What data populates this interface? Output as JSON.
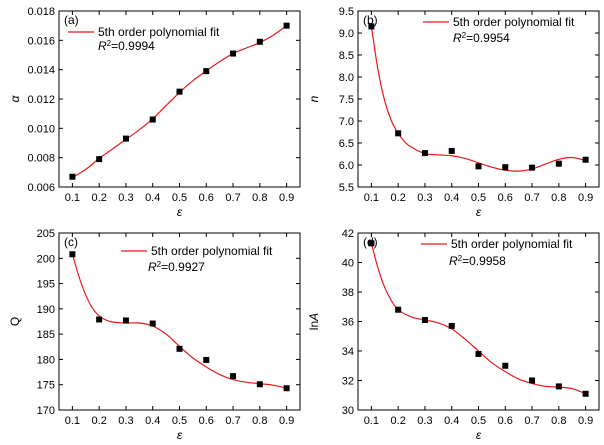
{
  "chart_data": [
    {
      "type": "scatter",
      "panel": "(a)",
      "xlabel": "ε",
      "ylabel": "α",
      "ylabel_italic": true,
      "xlim": [
        0.05,
        0.95
      ],
      "ylim": [
        0.006,
        0.018
      ],
      "xticks": [
        0.1,
        0.2,
        0.3,
        0.4,
        0.5,
        0.6,
        0.7,
        0.8,
        0.9
      ],
      "xtick_labels": [
        "0.1",
        "0.2",
        "0.3",
        "0.4",
        "0.5",
        "0.6",
        "0.7",
        "0.8",
        "0.9"
      ],
      "yticks": [
        0.006,
        0.008,
        0.01,
        0.012,
        0.014,
        0.016,
        0.018
      ],
      "ytick_labels": [
        "0.006",
        "0.008",
        "0.010",
        "0.012",
        "0.014",
        "0.016",
        "0.018"
      ],
      "x": [
        0.1,
        0.2,
        0.3,
        0.4,
        0.5,
        0.6,
        0.7,
        0.8,
        0.9
      ],
      "y": [
        0.0067,
        0.0079,
        0.0093,
        0.0106,
        0.0125,
        0.0139,
        0.0151,
        0.0159,
        0.017
      ],
      "fit_x": [
        0.1,
        0.15,
        0.2,
        0.25,
        0.3,
        0.35,
        0.4,
        0.45,
        0.5,
        0.55,
        0.6,
        0.65,
        0.7,
        0.75,
        0.8,
        0.85,
        0.9
      ],
      "fit_y": [
        0.00665,
        0.0072,
        0.00795,
        0.0086,
        0.00925,
        0.0099,
        0.01065,
        0.01155,
        0.01245,
        0.01325,
        0.01392,
        0.01455,
        0.0151,
        0.01548,
        0.01585,
        0.01635,
        0.017
      ],
      "legend_label": "5th order polynomial fit",
      "r2_label": "R",
      "r2_sup": "2",
      "r2_value": "=0.9994",
      "legend_position": "top-left"
    },
    {
      "type": "scatter",
      "panel": "(b)",
      "xlabel": "ε",
      "ylabel": "n",
      "ylabel_italic": true,
      "xlim": [
        0.05,
        0.95
      ],
      "ylim": [
        5.5,
        9.5
      ],
      "xticks": [
        0.1,
        0.2,
        0.3,
        0.4,
        0.5,
        0.6,
        0.7,
        0.8,
        0.9
      ],
      "xtick_labels": [
        "0.1",
        "0.2",
        "0.3",
        "0.4",
        "0.5",
        "0.6",
        "0.7",
        "0.8",
        "0.9"
      ],
      "yticks": [
        5.5,
        6.0,
        6.5,
        7.0,
        7.5,
        8.0,
        8.5,
        9.0,
        9.5
      ],
      "ytick_labels": [
        "5.5",
        "6.0",
        "6.5",
        "7.0",
        "7.5",
        "8.0",
        "8.5",
        "9.0",
        "9.5"
      ],
      "x": [
        0.1,
        0.2,
        0.3,
        0.4,
        0.5,
        0.6,
        0.7,
        0.8,
        0.9
      ],
      "y": [
        9.15,
        6.72,
        6.27,
        6.32,
        5.97,
        5.95,
        5.94,
        6.03,
        6.12
      ],
      "fit_x": [
        0.1,
        0.125,
        0.15,
        0.175,
        0.2,
        0.225,
        0.25,
        0.3,
        0.35,
        0.4,
        0.45,
        0.5,
        0.55,
        0.6,
        0.65,
        0.7,
        0.75,
        0.8,
        0.85,
        0.9
      ],
      "fit_y": [
        9.15,
        8.15,
        7.45,
        7.0,
        6.72,
        6.52,
        6.4,
        6.26,
        6.23,
        6.21,
        6.15,
        6.05,
        5.95,
        5.88,
        5.86,
        5.91,
        6.02,
        6.13,
        6.17,
        6.1
      ],
      "legend_label": "5th order polynomial fit",
      "r2_label": "R",
      "r2_sup": "2",
      "r2_value": "=0.9954",
      "legend_position": "top-right"
    },
    {
      "type": "scatter",
      "panel": "(c)",
      "xlabel": "ε",
      "ylabel": "Q",
      "ylabel_italic": false,
      "xlim": [
        0.05,
        0.95
      ],
      "ylim": [
        170,
        205
      ],
      "xticks": [
        0.1,
        0.2,
        0.3,
        0.4,
        0.5,
        0.6,
        0.7,
        0.8,
        0.9
      ],
      "xtick_labels": [
        "0.1",
        "0.2",
        "0.3",
        "0.4",
        "0.5",
        "0.6",
        "0.7",
        "0.8",
        "0.9"
      ],
      "yticks": [
        170,
        175,
        180,
        185,
        190,
        195,
        200,
        205
      ],
      "ytick_labels": [
        "170",
        "175",
        "180",
        "185",
        "190",
        "195",
        "200",
        "205"
      ],
      "x": [
        0.1,
        0.2,
        0.3,
        0.4,
        0.5,
        0.6,
        0.7,
        0.8,
        0.9
      ],
      "y": [
        200.8,
        187.9,
        187.7,
        187.1,
        182.1,
        179.9,
        176.7,
        175.1,
        174.3
      ],
      "fit_x": [
        0.1,
        0.125,
        0.15,
        0.175,
        0.2,
        0.225,
        0.25,
        0.3,
        0.35,
        0.4,
        0.45,
        0.5,
        0.55,
        0.6,
        0.65,
        0.7,
        0.75,
        0.8,
        0.85,
        0.9
      ],
      "fit_y": [
        200.8,
        196.3,
        192.7,
        190.1,
        188.6,
        187.8,
        187.4,
        187.2,
        187.2,
        186.6,
        185.0,
        182.6,
        180.3,
        178.5,
        177.0,
        176.0,
        175.5,
        175.2,
        174.9,
        174.3
      ],
      "legend_label": "5th order polynomial fit",
      "r2_label": "R",
      "r2_sup": "2",
      "r2_value": "=0.9927",
      "legend_position": "top-right"
    },
    {
      "type": "scatter",
      "panel": "(d)",
      "xlabel": "ε",
      "ylabel": "lnA",
      "ylabel_prefix": "ln",
      "ylabel_var": "A",
      "ylabel_italic": false,
      "xlim": [
        0.05,
        0.95
      ],
      "ylim": [
        30,
        42
      ],
      "xticks": [
        0.1,
        0.2,
        0.3,
        0.4,
        0.5,
        0.6,
        0.7,
        0.8,
        0.9
      ],
      "xtick_labels": [
        "0.1",
        "0.2",
        "0.3",
        "0.4",
        "0.5",
        "0.6",
        "0.7",
        "0.8",
        "0.9"
      ],
      "yticks": [
        30,
        32,
        34,
        36,
        38,
        40,
        42
      ],
      "ytick_labels": [
        "30",
        "32",
        "34",
        "36",
        "38",
        "40",
        "42"
      ],
      "x": [
        0.1,
        0.2,
        0.3,
        0.4,
        0.5,
        0.6,
        0.7,
        0.8,
        0.9
      ],
      "y": [
        41.3,
        36.8,
        36.1,
        35.7,
        33.8,
        33.0,
        32.0,
        31.6,
        31.1
      ],
      "fit_x": [
        0.1,
        0.125,
        0.15,
        0.175,
        0.2,
        0.25,
        0.3,
        0.35,
        0.4,
        0.45,
        0.5,
        0.55,
        0.6,
        0.65,
        0.7,
        0.75,
        0.8,
        0.85,
        0.9
      ],
      "fit_y": [
        41.3,
        39.6,
        38.3,
        37.4,
        36.8,
        36.3,
        36.1,
        35.9,
        35.5,
        34.8,
        34.0,
        33.2,
        32.6,
        32.1,
        31.8,
        31.6,
        31.55,
        31.45,
        31.1
      ],
      "legend_label": "5th order polynomial fit",
      "r2_label": "R",
      "r2_sup": "2",
      "r2_value": "=0.9958",
      "legend_position": "top-right"
    }
  ],
  "colors": {
    "fit_line": "#e8191c",
    "marker": "#000000",
    "axis": "#000000"
  }
}
